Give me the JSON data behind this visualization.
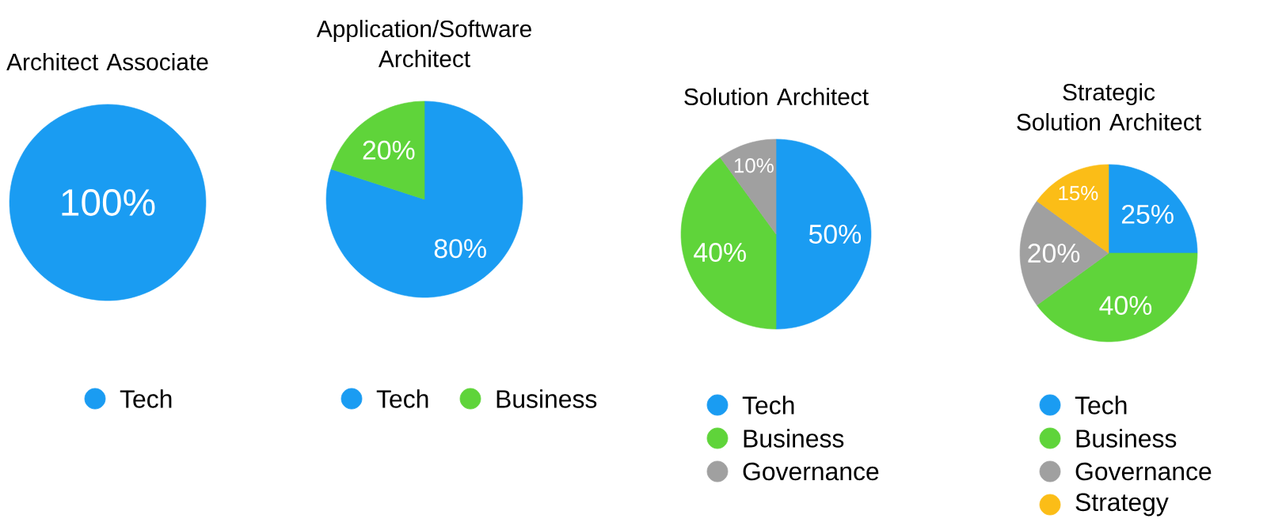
{
  "chart_data": [
    {
      "type": "pie",
      "title": "Architect Associate",
      "categories": [
        "Tech"
      ],
      "values": [
        100
      ],
      "colors": [
        "#1a9cf2"
      ],
      "value_labels": [
        "100%"
      ],
      "legend": "bottom"
    },
    {
      "type": "pie",
      "title": "Application/Software Architect",
      "categories": [
        "Tech",
        "Business"
      ],
      "values": [
        80,
        20
      ],
      "colors": [
        "#1a9cf2",
        "#5fd43a"
      ],
      "value_labels": [
        "80%",
        "20%"
      ],
      "legend": "bottom"
    },
    {
      "type": "pie",
      "title": "Solution Architect",
      "categories": [
        "Tech",
        "Business",
        "Governance"
      ],
      "values": [
        50,
        40,
        10
      ],
      "colors": [
        "#1a9cf2",
        "#5fd43a",
        "#a0a0a0"
      ],
      "value_labels": [
        "50%",
        "40%",
        "10%"
      ],
      "legend": "bottom"
    },
    {
      "type": "pie",
      "title": "Strategic Solution Architect",
      "categories": [
        "Tech",
        "Business",
        "Governance",
        "Strategy"
      ],
      "values": [
        25,
        40,
        20,
        15
      ],
      "colors": [
        "#1a9cf2",
        "#5fd43a",
        "#a0a0a0",
        "#fbbd17"
      ],
      "value_labels": [
        "25%",
        "40%",
        "20%",
        "15%"
      ],
      "legend": "bottom"
    }
  ]
}
